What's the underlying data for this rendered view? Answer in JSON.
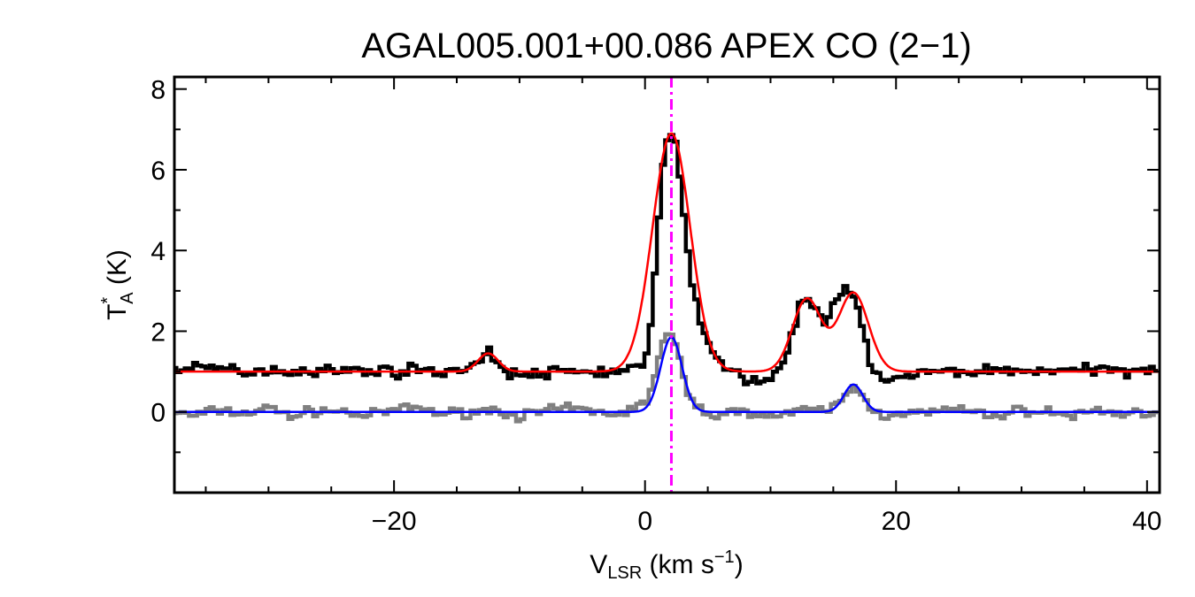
{
  "chart_data": {
    "type": "line",
    "title": "AGAL005.001+00.086  APEX CO (2−1)",
    "xlabel": {
      "main": "V",
      "sub": "LSR",
      "rest": " (km s",
      "sup": "−1",
      "end": ")"
    },
    "ylabel": {
      "main": "T",
      "sub": "A",
      "sup": "*",
      "rest": " (K)"
    },
    "xlim": [
      -37.5,
      41
    ],
    "ylim": [
      -2,
      8.3
    ],
    "x_ticks": [
      -20,
      0,
      20,
      40
    ],
    "x_tick_labels": [
      "−20",
      "0",
      "20",
      "40"
    ],
    "y_ticks": [
      0,
      2,
      4,
      6,
      8
    ],
    "y_tick_labels": [
      "0",
      "2",
      "4",
      "6",
      "8"
    ],
    "vline": {
      "x": 2.1,
      "color": "#ff00ff",
      "style": "dash-dot"
    },
    "colors": {
      "upper_spectrum": "#000000",
      "upper_fit": "#ff0000",
      "lower_spectrum": "#808080",
      "lower_fit": "#0000ff"
    },
    "series": [
      {
        "role": "upper_spectrum_sampled",
        "x": [
          -37.5,
          -36,
          -34,
          -32,
          -30,
          -28,
          -26,
          -24,
          -22,
          -20,
          -18,
          -16,
          -14,
          -13,
          -12.5,
          -12,
          -11,
          -10,
          -8,
          -6,
          -4,
          -2,
          0,
          0.5,
          1,
          1.5,
          2,
          2.5,
          3,
          3.5,
          4,
          5,
          6,
          7,
          8,
          9,
          10,
          11,
          12,
          12.5,
          13,
          13.5,
          14,
          14.5,
          15,
          15.5,
          16,
          16.5,
          17,
          17.5,
          18,
          19,
          20,
          22,
          24,
          26,
          28,
          30,
          32,
          34,
          36,
          38,
          40,
          41
        ],
        "y": [
          1.0,
          1.05,
          1.1,
          1.0,
          1.05,
          1.0,
          1.05,
          1.0,
          1.05,
          1.0,
          1.05,
          1.0,
          1.1,
          1.3,
          1.45,
          1.35,
          1.0,
          0.9,
          0.95,
          1.0,
          1.0,
          1.0,
          1.2,
          2.2,
          4.3,
          6.3,
          6.9,
          6.6,
          5.2,
          3.8,
          2.8,
          1.6,
          1.2,
          1.0,
          0.8,
          0.75,
          0.85,
          1.2,
          2.2,
          2.9,
          2.8,
          2.5,
          2.3,
          2.2,
          2.6,
          2.9,
          3.0,
          2.9,
          2.5,
          1.8,
          1.2,
          0.8,
          0.8,
          0.95,
          1.0,
          1.0,
          1.05,
          1.0,
          1.05,
          1.0,
          1.05,
          1.0,
          1.1,
          1.05
        ]
      },
      {
        "role": "lower_spectrum_sampled",
        "x": [
          -37.5,
          -36,
          -34,
          -32,
          -30,
          -28,
          -26,
          -24,
          -22,
          -20,
          -18,
          -16,
          -14,
          -12,
          -10,
          -8,
          -6,
          -4,
          -2,
          0,
          0.5,
          1,
          1.5,
          2,
          2.5,
          3,
          3.5,
          4,
          5,
          6,
          8,
          10,
          12,
          14,
          15,
          16,
          16.5,
          17,
          18,
          19,
          20,
          22,
          24,
          26,
          28,
          30,
          32,
          34,
          36,
          38,
          40,
          41
        ],
        "y": [
          0.0,
          -0.1,
          0.05,
          -0.05,
          0.1,
          -0.1,
          0.05,
          0.0,
          -0.1,
          0.05,
          0.1,
          -0.05,
          0.0,
          0.05,
          -0.1,
          0.0,
          0.1,
          0.0,
          -0.05,
          0.2,
          0.6,
          1.2,
          1.8,
          1.95,
          1.6,
          0.9,
          0.4,
          0.15,
          0.0,
          -0.1,
          0.05,
          -0.1,
          0.0,
          0.05,
          0.1,
          0.4,
          0.65,
          0.5,
          0.1,
          -0.1,
          0.0,
          -0.05,
          0.05,
          0.0,
          -0.1,
          0.05,
          0.0,
          -0.1,
          0.05,
          -0.05,
          0.0,
          0.05
        ]
      },
      {
        "role": "upper_fit",
        "baseline": 1.0,
        "components": [
          {
            "amp": 0.45,
            "center": -12.5,
            "sigma": 0.8
          },
          {
            "amp": 5.9,
            "center": 2.1,
            "sigma": 1.5
          },
          {
            "amp": 1.8,
            "center": 12.9,
            "sigma": 1.15
          },
          {
            "amp": 1.95,
            "center": 16.6,
            "sigma": 1.2
          }
        ]
      },
      {
        "role": "lower_fit",
        "baseline": 0.0,
        "components": [
          {
            "amp": 1.85,
            "center": 2.1,
            "sigma": 0.85
          },
          {
            "amp": 0.68,
            "center": 16.6,
            "sigma": 0.75
          }
        ]
      }
    ]
  }
}
